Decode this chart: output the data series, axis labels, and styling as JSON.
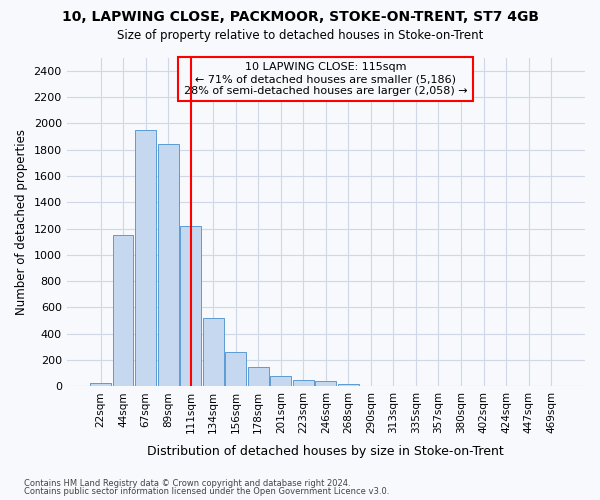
{
  "title1": "10, LAPWING CLOSE, PACKMOOR, STOKE-ON-TRENT, ST7 4GB",
  "title2": "Size of property relative to detached houses in Stoke-on-Trent",
  "xlabel": "Distribution of detached houses by size in Stoke-on-Trent",
  "ylabel": "Number of detached properties",
  "bin_labels": [
    "22sqm",
    "44sqm",
    "67sqm",
    "89sqm",
    "111sqm",
    "134sqm",
    "156sqm",
    "178sqm",
    "201sqm",
    "223sqm",
    "246sqm",
    "268sqm",
    "290sqm",
    "313sqm",
    "335sqm",
    "357sqm",
    "380sqm",
    "402sqm",
    "424sqm",
    "447sqm",
    "469sqm"
  ],
  "bar_heights": [
    25,
    1150,
    1950,
    1840,
    1220,
    520,
    265,
    150,
    80,
    50,
    38,
    20,
    5,
    5,
    2,
    2,
    0,
    0,
    0,
    0,
    0
  ],
  "bar_color": "#c5d8ef",
  "bar_edge_color": "#5b9bd5",
  "vline_x": 4,
  "vline_color": "red",
  "annotation_title": "10 LAPWING CLOSE: 115sqm",
  "annotation_line1": "← 71% of detached houses are smaller (5,186)",
  "annotation_line2": "28% of semi-detached houses are larger (2,058) →",
  "annotation_box_color": "red",
  "ylim": [
    0,
    2500
  ],
  "yticks": [
    0,
    200,
    400,
    600,
    800,
    1000,
    1200,
    1400,
    1600,
    1800,
    2000,
    2200,
    2400
  ],
  "footer1": "Contains HM Land Registry data © Crown copyright and database right 2024.",
  "footer2": "Contains public sector information licensed under the Open Government Licence v3.0.",
  "bg_color": "#f7f9fc",
  "grid_color": "#d0d8e8"
}
